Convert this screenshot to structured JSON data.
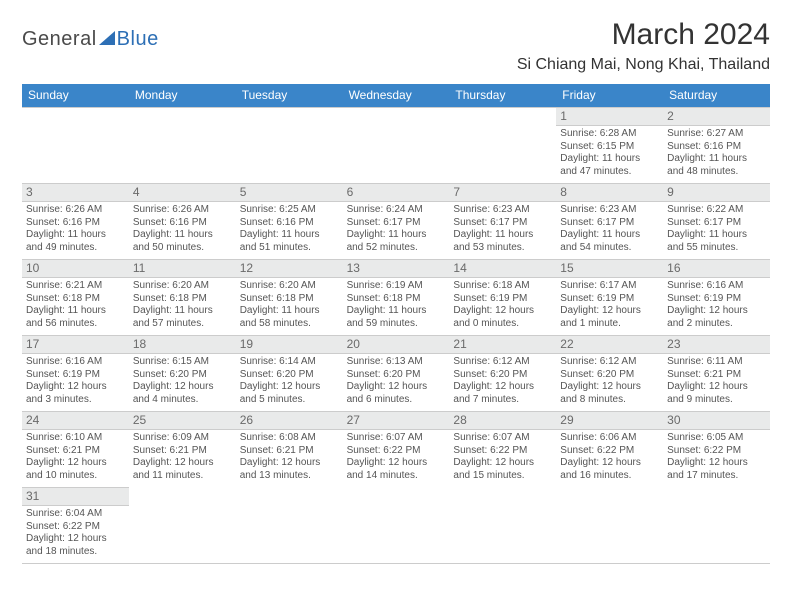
{
  "logo": {
    "general": "General",
    "blue": "Blue"
  },
  "title": "March 2024",
  "location": "Si Chiang Mai, Nong Khai, Thailand",
  "colors": {
    "header_bg": "#3a85c9",
    "header_text": "#ffffff",
    "daynum_bg": "#e9eaea",
    "daynum_text": "#6a6a6a",
    "body_text": "#555555",
    "border": "#cccccc",
    "logo_accent": "#2d6fb5"
  },
  "weekdays": [
    "Sunday",
    "Monday",
    "Tuesday",
    "Wednesday",
    "Thursday",
    "Friday",
    "Saturday"
  ],
  "leading_blanks": 5,
  "days": [
    {
      "n": 1,
      "sunrise": "6:28 AM",
      "sunset": "6:15 PM",
      "daylight": "11 hours and 47 minutes."
    },
    {
      "n": 2,
      "sunrise": "6:27 AM",
      "sunset": "6:16 PM",
      "daylight": "11 hours and 48 minutes."
    },
    {
      "n": 3,
      "sunrise": "6:26 AM",
      "sunset": "6:16 PM",
      "daylight": "11 hours and 49 minutes."
    },
    {
      "n": 4,
      "sunrise": "6:26 AM",
      "sunset": "6:16 PM",
      "daylight": "11 hours and 50 minutes."
    },
    {
      "n": 5,
      "sunrise": "6:25 AM",
      "sunset": "6:16 PM",
      "daylight": "11 hours and 51 minutes."
    },
    {
      "n": 6,
      "sunrise": "6:24 AM",
      "sunset": "6:17 PM",
      "daylight": "11 hours and 52 minutes."
    },
    {
      "n": 7,
      "sunrise": "6:23 AM",
      "sunset": "6:17 PM",
      "daylight": "11 hours and 53 minutes."
    },
    {
      "n": 8,
      "sunrise": "6:23 AM",
      "sunset": "6:17 PM",
      "daylight": "11 hours and 54 minutes."
    },
    {
      "n": 9,
      "sunrise": "6:22 AM",
      "sunset": "6:17 PM",
      "daylight": "11 hours and 55 minutes."
    },
    {
      "n": 10,
      "sunrise": "6:21 AM",
      "sunset": "6:18 PM",
      "daylight": "11 hours and 56 minutes."
    },
    {
      "n": 11,
      "sunrise": "6:20 AM",
      "sunset": "6:18 PM",
      "daylight": "11 hours and 57 minutes."
    },
    {
      "n": 12,
      "sunrise": "6:20 AM",
      "sunset": "6:18 PM",
      "daylight": "11 hours and 58 minutes."
    },
    {
      "n": 13,
      "sunrise": "6:19 AM",
      "sunset": "6:18 PM",
      "daylight": "11 hours and 59 minutes."
    },
    {
      "n": 14,
      "sunrise": "6:18 AM",
      "sunset": "6:19 PM",
      "daylight": "12 hours and 0 minutes."
    },
    {
      "n": 15,
      "sunrise": "6:17 AM",
      "sunset": "6:19 PM",
      "daylight": "12 hours and 1 minute."
    },
    {
      "n": 16,
      "sunrise": "6:16 AM",
      "sunset": "6:19 PM",
      "daylight": "12 hours and 2 minutes."
    },
    {
      "n": 17,
      "sunrise": "6:16 AM",
      "sunset": "6:19 PM",
      "daylight": "12 hours and 3 minutes."
    },
    {
      "n": 18,
      "sunrise": "6:15 AM",
      "sunset": "6:20 PM",
      "daylight": "12 hours and 4 minutes."
    },
    {
      "n": 19,
      "sunrise": "6:14 AM",
      "sunset": "6:20 PM",
      "daylight": "12 hours and 5 minutes."
    },
    {
      "n": 20,
      "sunrise": "6:13 AM",
      "sunset": "6:20 PM",
      "daylight": "12 hours and 6 minutes."
    },
    {
      "n": 21,
      "sunrise": "6:12 AM",
      "sunset": "6:20 PM",
      "daylight": "12 hours and 7 minutes."
    },
    {
      "n": 22,
      "sunrise": "6:12 AM",
      "sunset": "6:20 PM",
      "daylight": "12 hours and 8 minutes."
    },
    {
      "n": 23,
      "sunrise": "6:11 AM",
      "sunset": "6:21 PM",
      "daylight": "12 hours and 9 minutes."
    },
    {
      "n": 24,
      "sunrise": "6:10 AM",
      "sunset": "6:21 PM",
      "daylight": "12 hours and 10 minutes."
    },
    {
      "n": 25,
      "sunrise": "6:09 AM",
      "sunset": "6:21 PM",
      "daylight": "12 hours and 11 minutes."
    },
    {
      "n": 26,
      "sunrise": "6:08 AM",
      "sunset": "6:21 PM",
      "daylight": "12 hours and 13 minutes."
    },
    {
      "n": 27,
      "sunrise": "6:07 AM",
      "sunset": "6:22 PM",
      "daylight": "12 hours and 14 minutes."
    },
    {
      "n": 28,
      "sunrise": "6:07 AM",
      "sunset": "6:22 PM",
      "daylight": "12 hours and 15 minutes."
    },
    {
      "n": 29,
      "sunrise": "6:06 AM",
      "sunset": "6:22 PM",
      "daylight": "12 hours and 16 minutes."
    },
    {
      "n": 30,
      "sunrise": "6:05 AM",
      "sunset": "6:22 PM",
      "daylight": "12 hours and 17 minutes."
    },
    {
      "n": 31,
      "sunrise": "6:04 AM",
      "sunset": "6:22 PM",
      "daylight": "12 hours and 18 minutes."
    }
  ],
  "labels": {
    "sunrise": "Sunrise: ",
    "sunset": "Sunset: ",
    "daylight": "Daylight: "
  }
}
